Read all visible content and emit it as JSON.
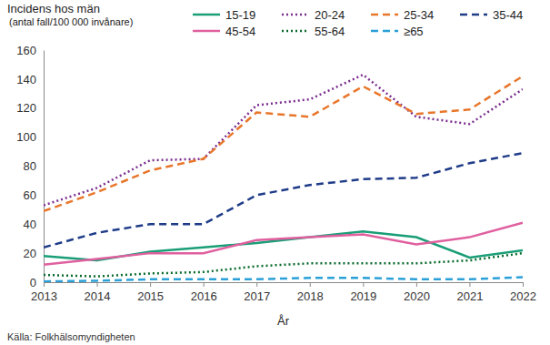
{
  "chart_data": {
    "type": "line",
    "y_label": [
      "Incidens hos män",
      "(antal fall/100 000 invånare)"
    ],
    "x_label": "År",
    "source": "Källa: Folkhälsomyndigheten",
    "x": [
      2013,
      2014,
      2015,
      2016,
      2017,
      2018,
      2019,
      2020,
      2021,
      2022
    ],
    "xlim": [
      2013,
      2022
    ],
    "xticks": [
      2013,
      2014,
      2015,
      2016,
      2017,
      2018,
      2019,
      2020,
      2021,
      2022
    ],
    "ylim": [
      0,
      160
    ],
    "yticks": [
      0,
      20,
      40,
      60,
      80,
      100,
      120,
      140,
      160
    ],
    "grid": false,
    "legend": "top",
    "series": [
      {
        "name": "15-19",
        "color": "#1a9e77",
        "line_style": "solid",
        "values": [
          18,
          15,
          21,
          24,
          27,
          31,
          35,
          31,
          17,
          22
        ]
      },
      {
        "name": "20-24",
        "color": "#7b2d8e",
        "line_style": "dotted",
        "values": [
          53,
          65,
          84,
          85,
          122,
          126,
          143,
          114,
          109,
          133
        ]
      },
      {
        "name": "25-34",
        "color": "#e8762b",
        "line_style": "dashed",
        "values": [
          49,
          62,
          77,
          85,
          117,
          114,
          135,
          116,
          119,
          142
        ]
      },
      {
        "name": "35-44",
        "color": "#1f3c88",
        "line_style": "dashed",
        "values": [
          24,
          34,
          40,
          40,
          60,
          67,
          71,
          72,
          82,
          89
        ]
      },
      {
        "name": "45-54",
        "color": "#e0609f",
        "line_style": "solid",
        "values": [
          12,
          16,
          20,
          20,
          29,
          31,
          33,
          26,
          31,
          41
        ]
      },
      {
        "name": "55-64",
        "color": "#0b6b2e",
        "line_style": "dotted",
        "values": [
          5,
          4,
          6,
          7,
          11,
          13,
          13,
          13,
          15,
          20
        ]
      },
      {
        "name": "≥65",
        "color": "#2aa0d8",
        "line_style": "dashed",
        "values": [
          0.5,
          1,
          2,
          2,
          2,
          3,
          3,
          2,
          2,
          3.5
        ]
      }
    ]
  }
}
